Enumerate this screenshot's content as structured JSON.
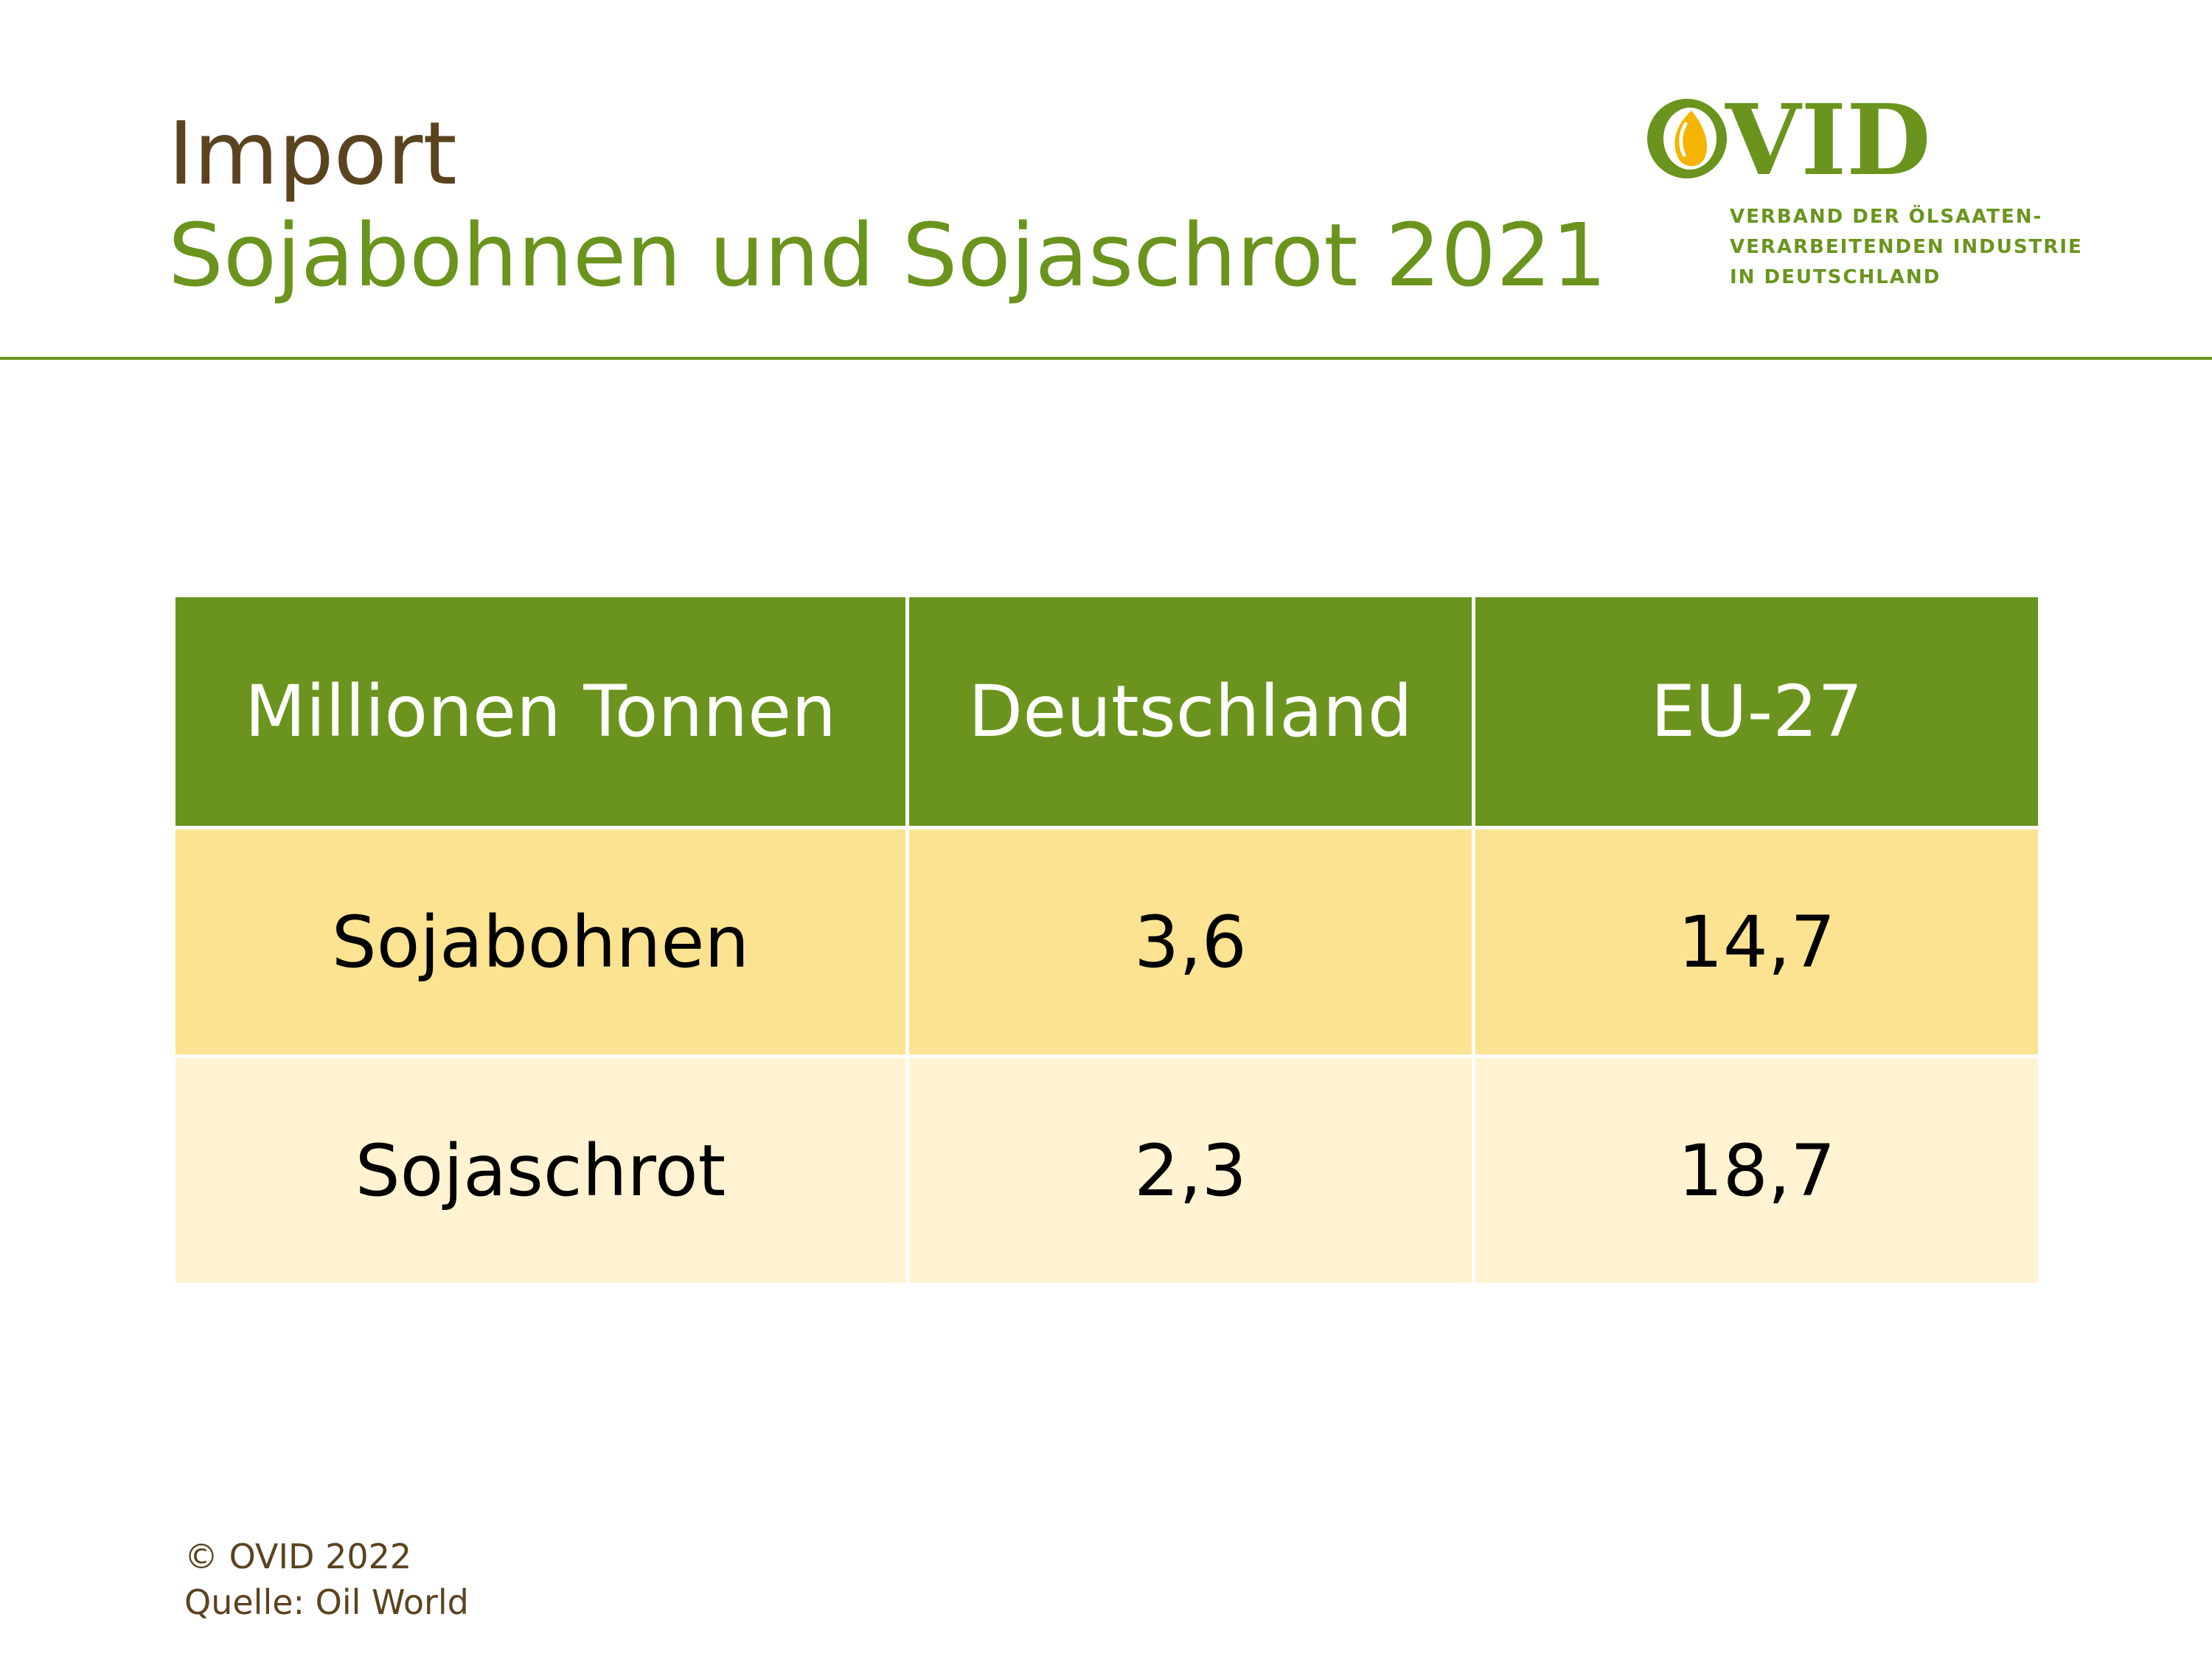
{
  "header": {
    "title": "Import",
    "subtitle": "Sojabohnen und Sojaschrot 2021"
  },
  "logo": {
    "wordmark": "OVID",
    "tagline": [
      "VERBAND DER ÖLSAATEN-",
      "VERARBEITENDEN INDUSTRIE",
      "IN DEUTSCHLAND"
    ]
  },
  "colors": {
    "brand_green": "#6a941d",
    "title_brown": "#5b4320",
    "row_yellow": "#fce391",
    "row_light": "#fff3d1",
    "logo_yellow": "#f5b400"
  },
  "chart_data": {
    "type": "table",
    "columns": [
      "Millionen Tonnen",
      "Deutschland",
      "EU-27"
    ],
    "rows": [
      {
        "label": "Sojabohnen",
        "values": [
          "3,6",
          "14,7"
        ]
      },
      {
        "label": "Sojaschrot",
        "values": [
          "2,3",
          "18,7"
        ]
      }
    ]
  },
  "footer": {
    "copyright": "© OVID 2022",
    "source": "Quelle: Oil World"
  }
}
